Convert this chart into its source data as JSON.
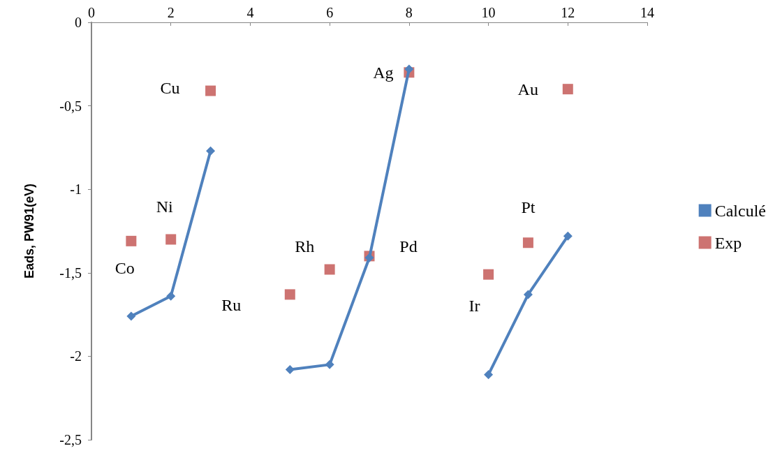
{
  "chart_data": {
    "type": "line",
    "ylabel": "Eads, PW91(eV)",
    "x": [
      1,
      2,
      3,
      4,
      5,
      6,
      7,
      8,
      9,
      10,
      11,
      12
    ],
    "series": [
      {
        "name": "Calculé",
        "color": "#4f81bd",
        "marker": "diamond",
        "values": [
          -1.76,
          -1.64,
          -0.77,
          null,
          -2.08,
          -2.05,
          -1.41,
          -0.28,
          null,
          -2.11,
          -1.63,
          -1.28
        ]
      },
      {
        "name": "Exp",
        "type": "scatter",
        "color": "#c0504d",
        "marker": "square",
        "values": [
          -1.31,
          -1.3,
          -0.41,
          null,
          -1.63,
          -1.48,
          -1.4,
          -0.3,
          null,
          -1.51,
          -1.32,
          -0.4
        ]
      }
    ],
    "xlim": [
      0,
      14
    ],
    "xticks": [
      0,
      2,
      4,
      6,
      8,
      10,
      12,
      14
    ],
    "ylim": [
      -2.5,
      0
    ],
    "yticks": [
      {
        "value": -2.5,
        "label": "-2,5"
      },
      {
        "value": -2,
        "label": "-2"
      },
      {
        "value": -1.5,
        "label": "-1,5"
      },
      {
        "value": -1,
        "label": "-1"
      },
      {
        "value": -0.5,
        "label": "-0,5"
      },
      {
        "value": 0,
        "label": "0"
      }
    ],
    "grid": false,
    "legend": "right",
    "annotations": [
      {
        "text": "Cu",
        "x": 3,
        "y": -0.41
      },
      {
        "text": "Ni",
        "x": 2,
        "y": -1.3
      },
      {
        "text": "Co",
        "x": 1,
        "y": -1.31
      },
      {
        "text": "Ag",
        "x": 8,
        "y": -0.3
      },
      {
        "text": "Rh",
        "x": 6,
        "y": -1.48
      },
      {
        "text": "Pd",
        "x": 7,
        "y": -1.4
      },
      {
        "text": "Ru",
        "x": 5,
        "y": -1.63
      },
      {
        "text": "Au",
        "x": 12,
        "y": -0.4
      },
      {
        "text": "Pt",
        "x": 11,
        "y": -1.32
      },
      {
        "text": "Ir",
        "x": 10,
        "y": -1.51
      }
    ]
  }
}
